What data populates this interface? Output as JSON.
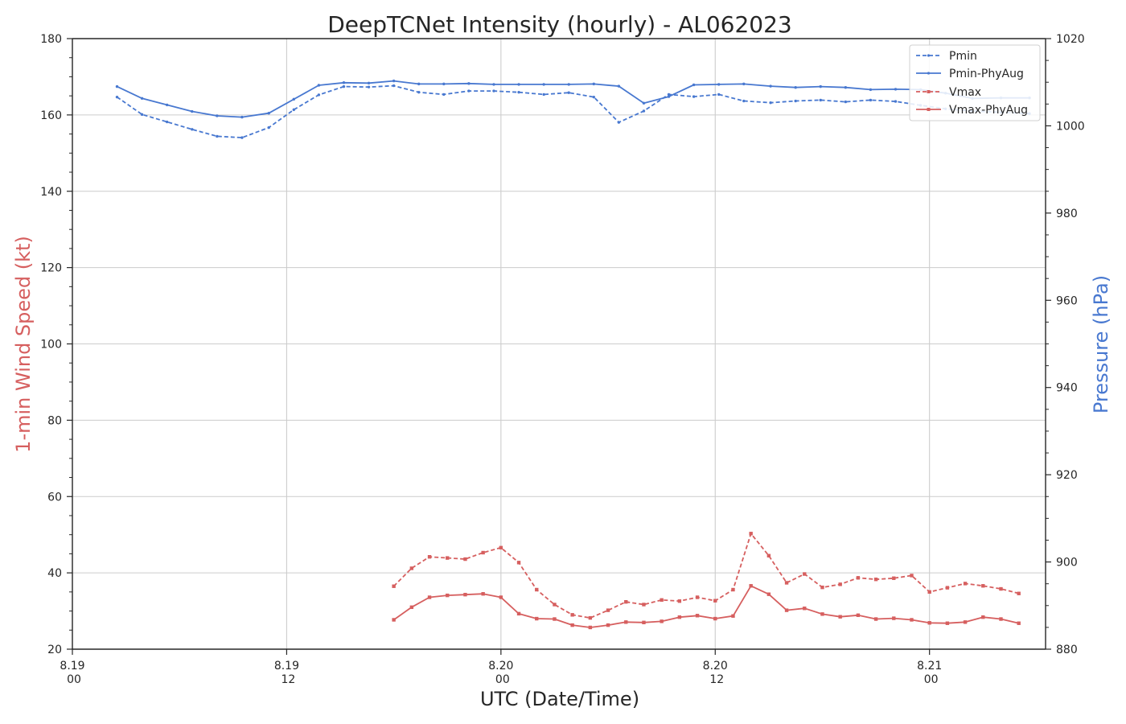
{
  "chart_data": {
    "type": "line",
    "title": "DeepTCNet Intensity (hourly) - AL062023",
    "xlabel": "UTC (Date/Time)",
    "ylabel_left": "1-min Wind Speed (kt)",
    "ylabel_right": "Pressure (hPa)",
    "colors": {
      "wind": "#d65f5f",
      "pressure": "#4878d0",
      "grid": "#cccccc",
      "axis": "#262626"
    },
    "x_range_hours": [
      0,
      54.5
    ],
    "x_ticks": [
      {
        "hour": 0,
        "date": "8.19",
        "time": "00"
      },
      {
        "hour": 12,
        "date": "8.19",
        "time": "12"
      },
      {
        "hour": 24,
        "date": "8.20",
        "time": "00"
      },
      {
        "hour": 36,
        "date": "8.20",
        "time": "12"
      },
      {
        "hour": 48,
        "date": "8.21",
        "time": "00"
      }
    ],
    "ylim_left": [
      20,
      180
    ],
    "yticks_left": [
      20,
      40,
      60,
      80,
      100,
      120,
      140,
      160,
      180
    ],
    "ylim_right": [
      880,
      1020
    ],
    "yticks_right": [
      880,
      900,
      920,
      940,
      960,
      980,
      1000,
      1020
    ],
    "grid": true,
    "legend_position": "top-right",
    "legend": [
      "Pmin",
      "Pmin-PhyAug",
      "Vmax",
      "Vmax-PhyAug"
    ],
    "series": [
      {
        "name": "Pmin",
        "axis": "right",
        "color": "#4878d0",
        "style": "dashed",
        "marker": "small-dot",
        "x": [
          2.5,
          3.9,
          5.3,
          6.7,
          8.1,
          9.5,
          11.0,
          12.4,
          13.8,
          15.2,
          16.6,
          18.0,
          19.4,
          20.8,
          22.2,
          23.6,
          25.0,
          26.4,
          27.8,
          29.2,
          30.6,
          32.0,
          33.4,
          34.8,
          36.2,
          37.6,
          39.1,
          40.5,
          41.9,
          43.3,
          44.7,
          46.1,
          47.5,
          48.9,
          50.4,
          52.0,
          53.6
        ],
        "values": [
          1006.6,
          1002.6,
          1000.9,
          999.2,
          997.6,
          997.3,
          999.6,
          1003.7,
          1007.1,
          1009.0,
          1008.9,
          1009.2,
          1007.7,
          1007.2,
          1008.0,
          1008.0,
          1007.7,
          1007.2,
          1007.6,
          1006.6,
          1000.8,
          1003.4,
          1007.2,
          1006.7,
          1007.2,
          1005.7,
          1005.3,
          1005.7,
          1005.9,
          1005.5,
          1005.9,
          1005.6,
          1004.7,
          1003.9,
          1003.4,
          1003.1,
          1002.8
        ]
      },
      {
        "name": "Pmin-PhyAug",
        "axis": "right",
        "color": "#4878d0",
        "style": "solid",
        "marker": "small-dot",
        "x": [
          2.5,
          3.9,
          5.3,
          6.7,
          8.1,
          9.5,
          11.0,
          12.4,
          13.8,
          15.2,
          16.6,
          18.0,
          19.4,
          20.8,
          22.2,
          23.6,
          25.0,
          26.4,
          27.8,
          29.2,
          30.6,
          32.0,
          33.4,
          34.8,
          36.2,
          37.6,
          39.1,
          40.5,
          41.9,
          43.3,
          44.7,
          46.1,
          47.5,
          48.9,
          50.4,
          52.0,
          53.6
        ],
        "values": [
          1009.0,
          1006.3,
          1004.8,
          1003.3,
          1002.3,
          1002.0,
          1002.9,
          1006.1,
          1009.3,
          1009.9,
          1009.8,
          1010.3,
          1009.6,
          1009.6,
          1009.7,
          1009.5,
          1009.5,
          1009.5,
          1009.5,
          1009.6,
          1009.1,
          1005.2,
          1006.7,
          1009.4,
          1009.5,
          1009.6,
          1009.1,
          1008.8,
          1009.0,
          1008.8,
          1008.3,
          1008.4,
          1008.3,
          1007.5,
          1006.3,
          1006.4,
          1006.4
        ]
      },
      {
        "name": "Vmax",
        "axis": "left",
        "color": "#d65f5f",
        "style": "dashed",
        "marker": "square",
        "x": [
          18.0,
          19.0,
          20.0,
          21.0,
          22.0,
          23.0,
          24.0,
          25.0,
          26.0,
          27.0,
          28.0,
          29.0,
          30.0,
          31.0,
          32.0,
          33.0,
          34.0,
          35.0,
          36.0,
          37.0,
          38.0,
          39.0,
          40.0,
          41.0,
          42.0,
          43.0,
          44.0,
          45.0,
          46.0,
          47.0,
          48.0,
          49.0,
          50.0,
          51.0,
          52.0,
          53.0
        ],
        "values": [
          36.5,
          41.2,
          44.2,
          43.9,
          43.6,
          45.3,
          46.6,
          42.7,
          35.6,
          31.7,
          29.0,
          28.2,
          30.2,
          32.4,
          31.7,
          32.9,
          32.6,
          33.6,
          32.7,
          35.6,
          50.3,
          44.5,
          37.4,
          39.7,
          36.2,
          37.0,
          38.7,
          38.3,
          38.6,
          39.3,
          35.0,
          36.1,
          37.2,
          36.6,
          35.8,
          34.6
        ]
      },
      {
        "name": "Vmax-PhyAug",
        "axis": "left",
        "color": "#d65f5f",
        "style": "solid",
        "marker": "square",
        "x": [
          18.0,
          19.0,
          20.0,
          21.0,
          22.0,
          23.0,
          24.0,
          25.0,
          26.0,
          27.0,
          28.0,
          29.0,
          30.0,
          31.0,
          32.0,
          33.0,
          34.0,
          35.0,
          36.0,
          37.0,
          38.0,
          39.0,
          40.0,
          41.0,
          42.0,
          43.0,
          44.0,
          45.0,
          46.0,
          47.0,
          48.0,
          49.0,
          50.0,
          51.0,
          52.0,
          53.0
        ],
        "values": [
          27.7,
          31.0,
          33.6,
          34.1,
          34.3,
          34.5,
          33.6,
          29.3,
          28.0,
          27.9,
          26.3,
          25.7,
          26.3,
          27.1,
          27.0,
          27.3,
          28.4,
          28.8,
          28.0,
          28.7,
          36.6,
          34.4,
          30.2,
          30.7,
          29.2,
          28.5,
          28.9,
          27.9,
          28.1,
          27.7,
          26.9,
          26.8,
          27.1,
          28.4,
          27.9,
          26.8
        ]
      }
    ]
  }
}
